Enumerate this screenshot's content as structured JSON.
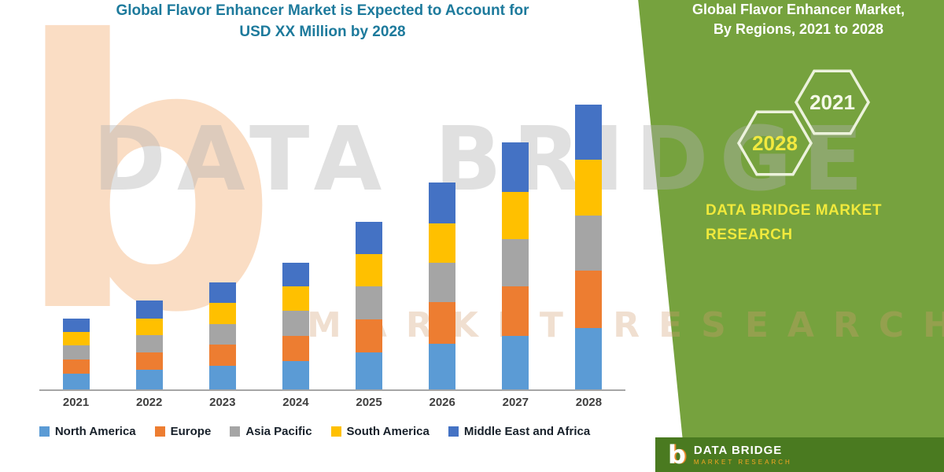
{
  "title": {
    "line1": "Global Flavor Enhancer Market is Expected to Account for",
    "line2": "USD XX Million by 2028"
  },
  "side_panel": {
    "heading_line1": "Global Flavor Enhancer Market,",
    "heading_line2": "By Regions, 2021 to 2028",
    "hex_left_label": "2028",
    "hex_right_label": "2021",
    "brand_line1": "DATA BRIDGE MARKET",
    "brand_line2": "RESEARCH",
    "bg_color": "#76A23E",
    "accent_yellow": "#F0E93C"
  },
  "footer": {
    "brand": "DATA BRIDGE",
    "sub": "MARKET RESEARCH",
    "logo_glyph": "b",
    "bg_color": "#4A7A20"
  },
  "watermark": {
    "logo_glyph": "b",
    "text1": "DATA BRIDGE",
    "text2": "MARKET RESEARCH"
  },
  "chart_data": {
    "type": "bar",
    "stacked": true,
    "title": "Global Flavor Enhancer Market is Expected to Account for USD XX Million by 2028",
    "xlabel": "",
    "ylabel": "",
    "axis_note": "No y-axis scale shown; values are relative units estimated from bar heights",
    "legend_position": "bottom",
    "grid": false,
    "categories": [
      "2021",
      "2022",
      "2023",
      "2024",
      "2025",
      "2026",
      "2027",
      "2028"
    ],
    "series": [
      {
        "name": "North America",
        "color": "#5B9BD5",
        "values": [
          20,
          25,
          30,
          36,
          47,
          58,
          68,
          78
        ]
      },
      {
        "name": "Europe",
        "color": "#ED7D31",
        "values": [
          18,
          22,
          27,
          32,
          42,
          52,
          62,
          72
        ]
      },
      {
        "name": "Asia Pacific",
        "color": "#A5A5A5",
        "values": [
          18,
          22,
          26,
          31,
          41,
          50,
          60,
          70
        ]
      },
      {
        "name": "South America",
        "color": "#FFC000",
        "values": [
          17,
          21,
          26,
          31,
          41,
          50,
          60,
          70
        ]
      },
      {
        "name": "Middle East and Africa",
        "color": "#4472C4",
        "values": [
          17,
          22,
          26,
          30,
          41,
          52,
          62,
          70
        ]
      }
    ]
  }
}
